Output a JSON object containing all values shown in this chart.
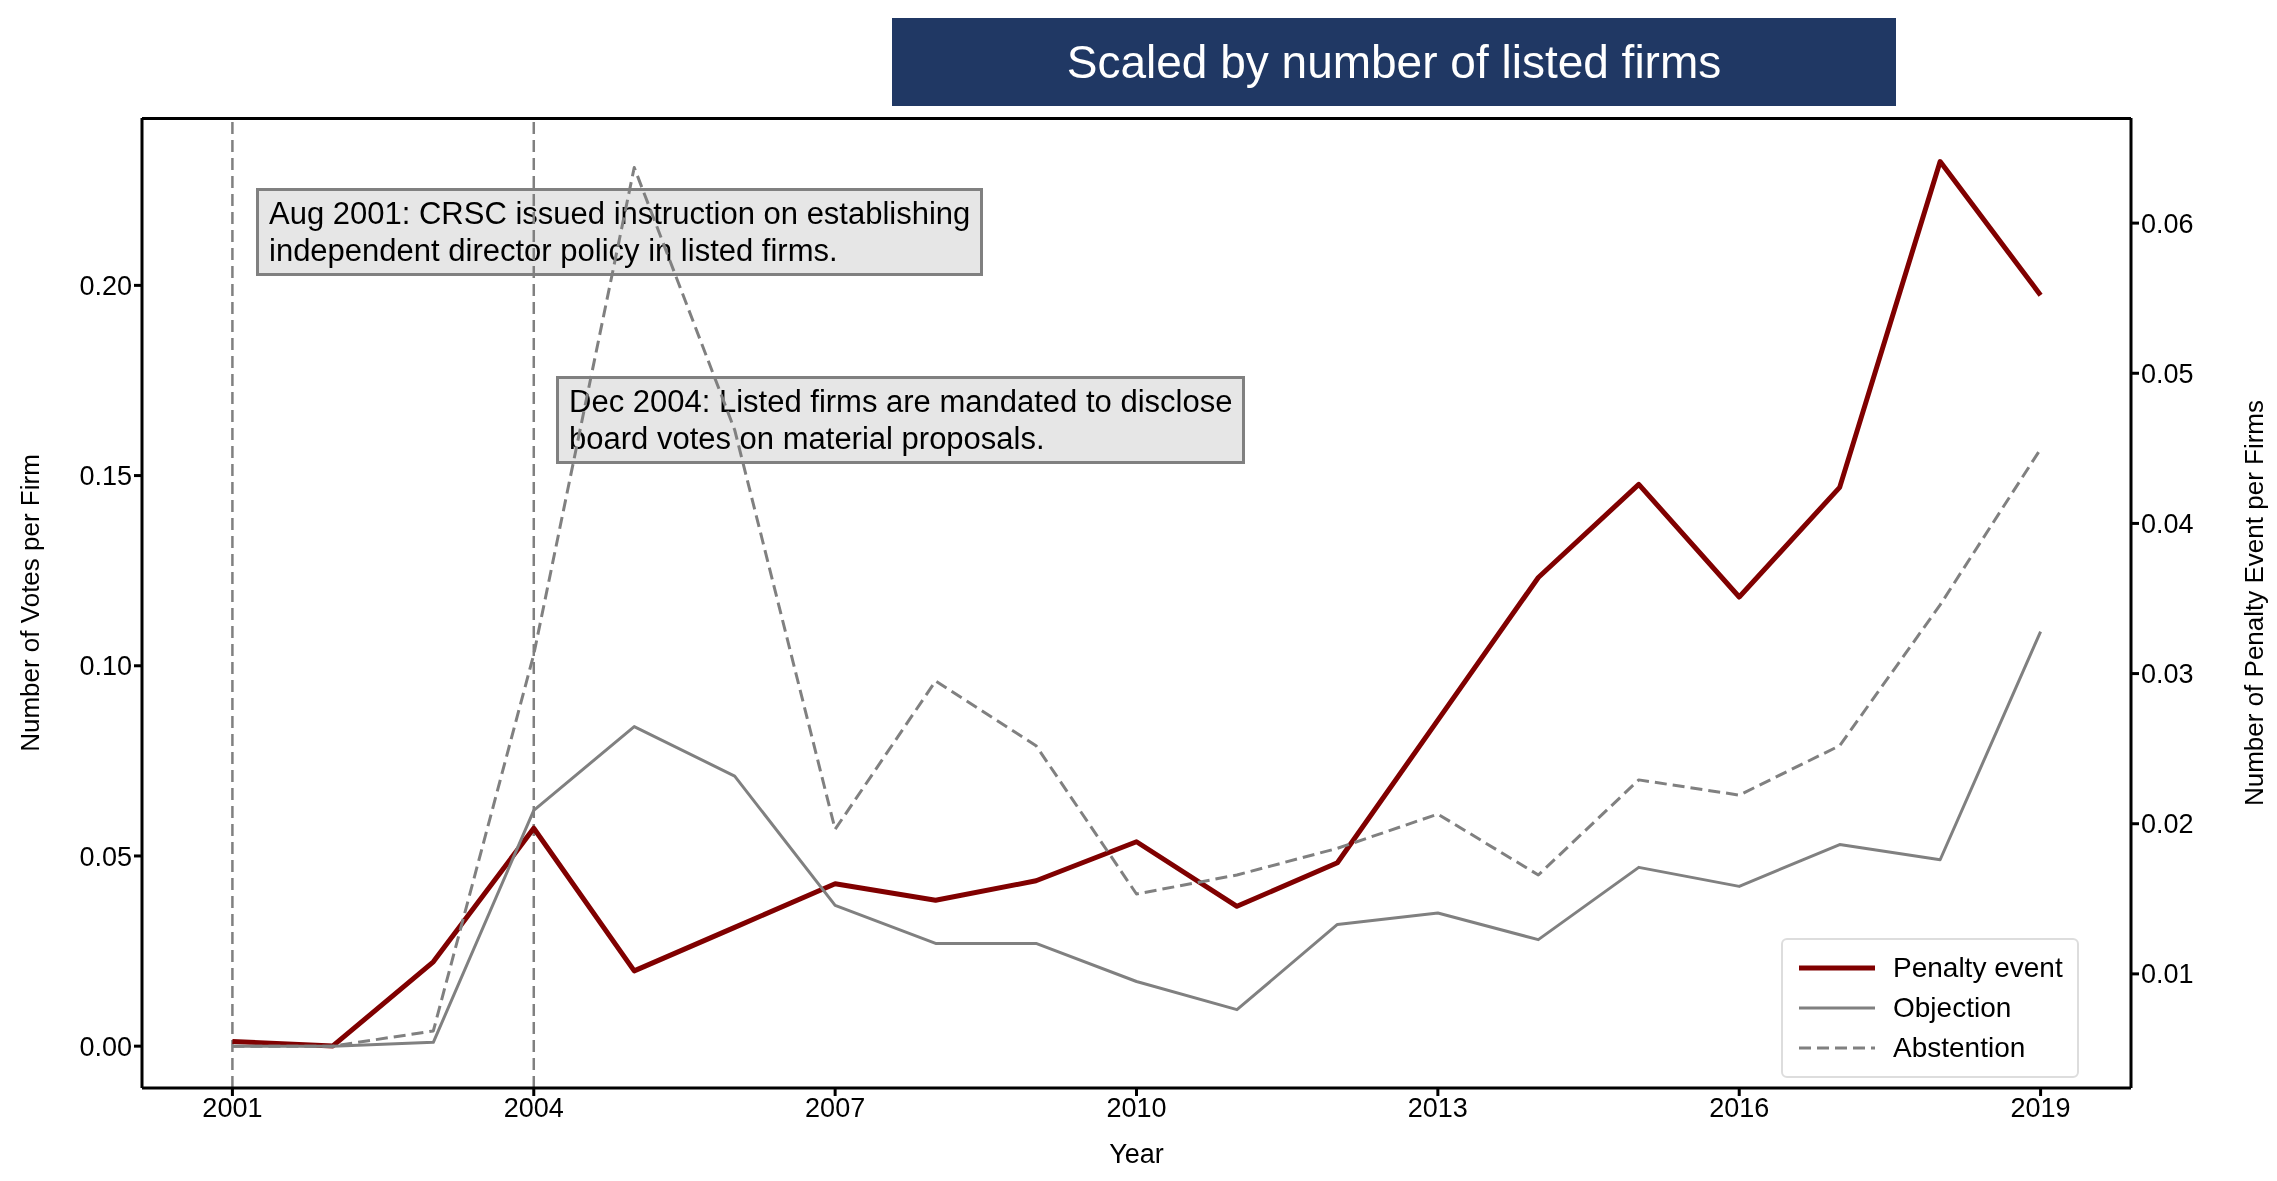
{
  "chart_data": {
    "type": "line",
    "title": "Scaled by number of listed firms",
    "xlabel": "Year",
    "ylabel": "Number of Votes per Firm",
    "y2label": "Number of Penalty Event per Firms",
    "x": [
      2001,
      2002,
      2003,
      2004,
      2005,
      2006,
      2007,
      2008,
      2009,
      2010,
      2011,
      2012,
      2013,
      2014,
      2015,
      2016,
      2017,
      2018,
      2019
    ],
    "series": [
      {
        "name": "Penalty event",
        "color": "#800000",
        "axis": "y2",
        "line_style": "solid",
        "values": [
          0.0055,
          0.0052,
          0.0108,
          0.0197,
          0.0102,
          0.0131,
          0.016,
          0.0149,
          0.0162,
          0.0188,
          0.0145,
          0.0174,
          0.0269,
          0.0364,
          0.0426,
          0.0351,
          0.0424,
          0.0641,
          0.0552
        ]
      },
      {
        "name": "Objection",
        "color": "#808080",
        "line_style": "solid",
        "values": [
          0,
          0,
          0.001,
          0.062,
          0.084,
          0.071,
          0.037,
          0.027,
          0.027,
          0.017,
          0.0096,
          0.032,
          0.035,
          0.028,
          0.047,
          0.042,
          0.053,
          0.049,
          0.109
        ]
      },
      {
        "name": "Abstention",
        "color": "#808080",
        "line_style": "dashed",
        "values": [
          0,
          0,
          0.004,
          0.103,
          0.231,
          0.162,
          0.057,
          0.096,
          0.079,
          0.04,
          0.045,
          0.052,
          0.061,
          0.045,
          0.07,
          0.066,
          0.079,
          0.116,
          0.157
        ]
      }
    ],
    "xlim": [
      2000.1,
      2019.9
    ],
    "xticks": [
      2001,
      2004,
      2007,
      2010,
      2013,
      2016,
      2019
    ],
    "ylim": [
      -0.011,
      0.244
    ],
    "yticks": [
      {
        "value": 0,
        "label": "0.00"
      },
      {
        "value": 0.05,
        "label": "0.05"
      },
      {
        "value": 0.1,
        "label": "0.10"
      },
      {
        "value": 0.15,
        "label": "0.15"
      },
      {
        "value": 0.2,
        "label": "0.20"
      }
    ],
    "y2lim": [
      0.0024,
      0.067
    ],
    "y2ticks": [
      0.01,
      0.02,
      0.03,
      0.04,
      0.05,
      0.06
    ],
    "ref_lines": [
      {
        "axis": "x",
        "value": 2001,
        "color": "#808080",
        "line_style": "dashed"
      },
      {
        "axis": "x",
        "value": 2004,
        "color": "#808080",
        "line_style": "dashed"
      }
    ],
    "annotations": [
      "Aug 2001: CRSC issued instruction on establishing\nindependent director policy in listed firms.",
      "Dec 2004: Listed firms are mandated to disclose\nboard votes on material proposals."
    ],
    "legend": "bottom right",
    "marker": "none"
  }
}
